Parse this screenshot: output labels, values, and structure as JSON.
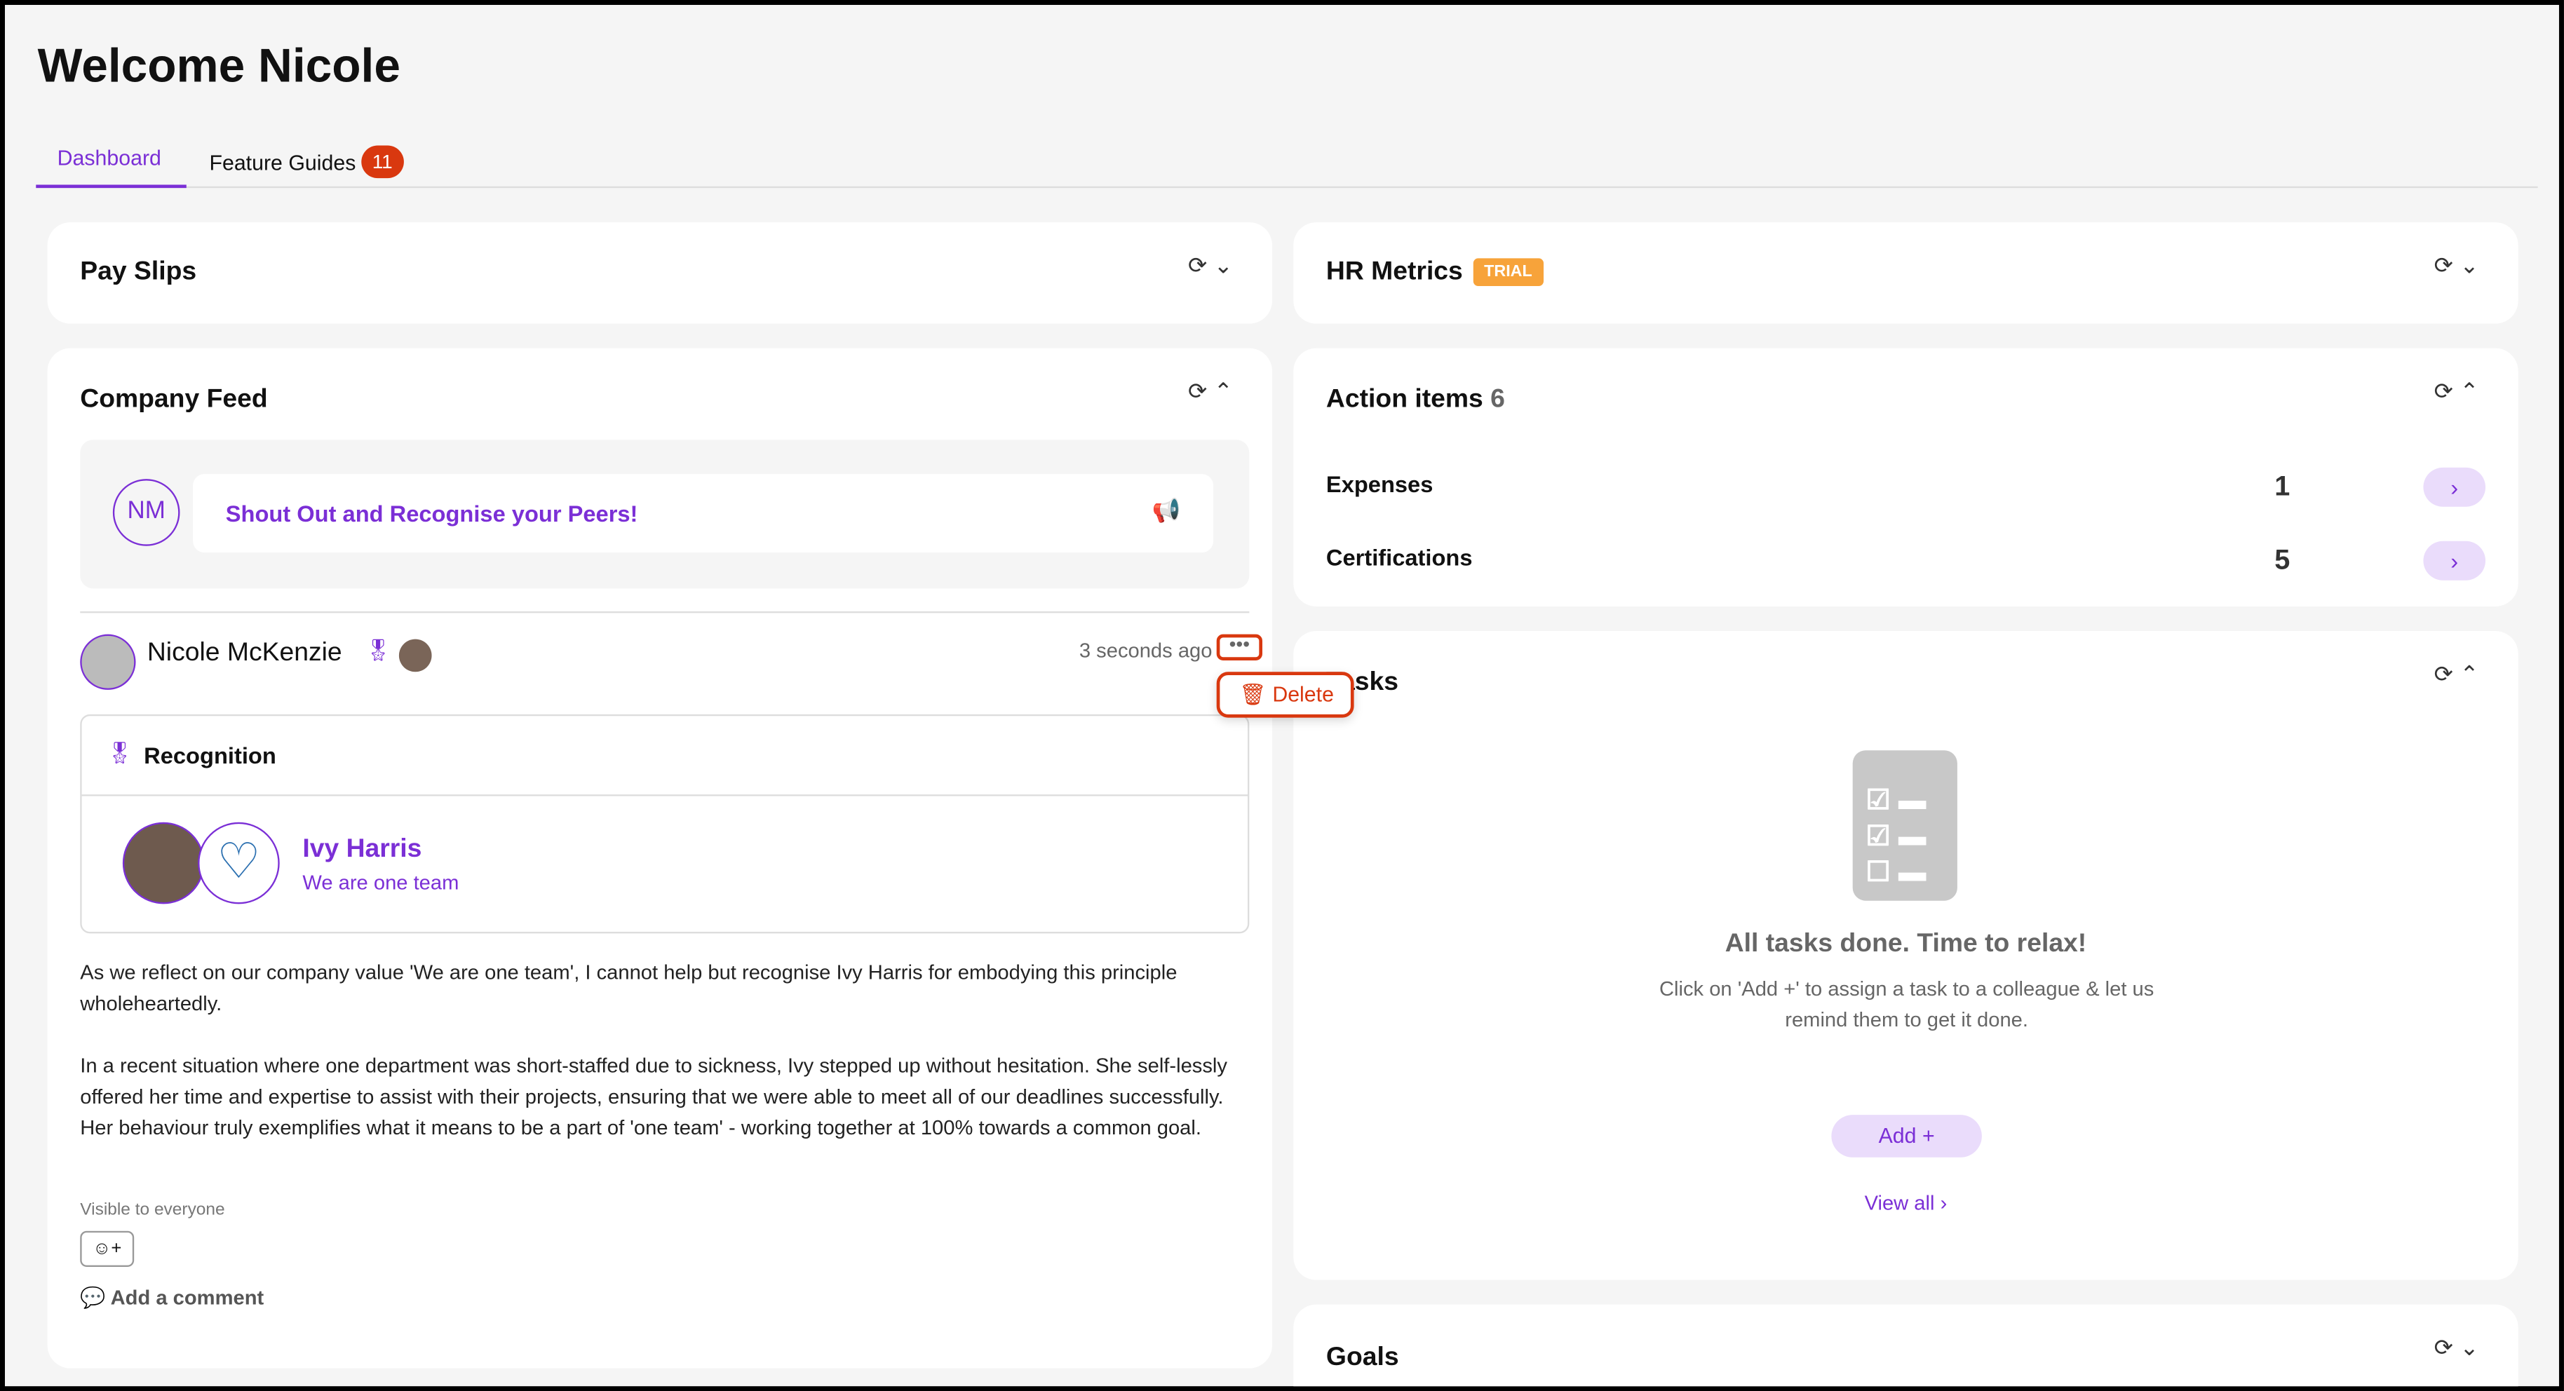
{
  "header": {
    "title": "Welcome Nicole"
  },
  "tabs": [
    {
      "label": "Dashboard",
      "active": true
    },
    {
      "label": "Feature Guides",
      "badge": "11"
    }
  ],
  "colors": {
    "accent": "#7b2fd6",
    "badge": "#d9380f",
    "trial": "#f7a33a",
    "delete": "#d9380f"
  },
  "payslips": {
    "title": "Pay Slips"
  },
  "feed": {
    "title": "Company Feed",
    "composer_initials": "NM",
    "composer_prompt": "Shout Out and Recognise your Peers!",
    "post": {
      "author": "Nicole McKenzie",
      "time": "3 seconds ago",
      "menu_item": "Delete",
      "type": "Recognition",
      "recipient": "Ivy Harris",
      "value": "We are one team",
      "body": [
        "As we reflect on our company value 'We are one team', I cannot help but recognise Ivy Harris for embodying this principle wholeheartedly.",
        "In a recent situation where one department was short-staffed due to sickness, Ivy stepped up without hesitation. She self-lessly offered her time and expertise to assist with their projects, ensuring that we were able to meet all of our deadlines successfully. Her behaviour truly exemplifies what it means to be a part of 'one team' - working together at 100% towards a common goal."
      ],
      "visibility": "Visible to everyone",
      "add_comment": "Add a comment"
    }
  },
  "hr_metrics": {
    "title": "HR Metrics",
    "badge": "TRIAL"
  },
  "action_items": {
    "title": "Action items",
    "count": "6",
    "items": [
      {
        "label": "Expenses",
        "count": "1"
      },
      {
        "label": "Certifications",
        "count": "5"
      }
    ]
  },
  "tasks": {
    "title": "Tasks",
    "empty_title": "All tasks done. Time to relax!",
    "empty_text": "Click on 'Add +' to assign a task to a colleague & let us remind them to get it done.",
    "add": "Add",
    "view_all": "View all"
  },
  "goals": {
    "title": "Goals"
  }
}
